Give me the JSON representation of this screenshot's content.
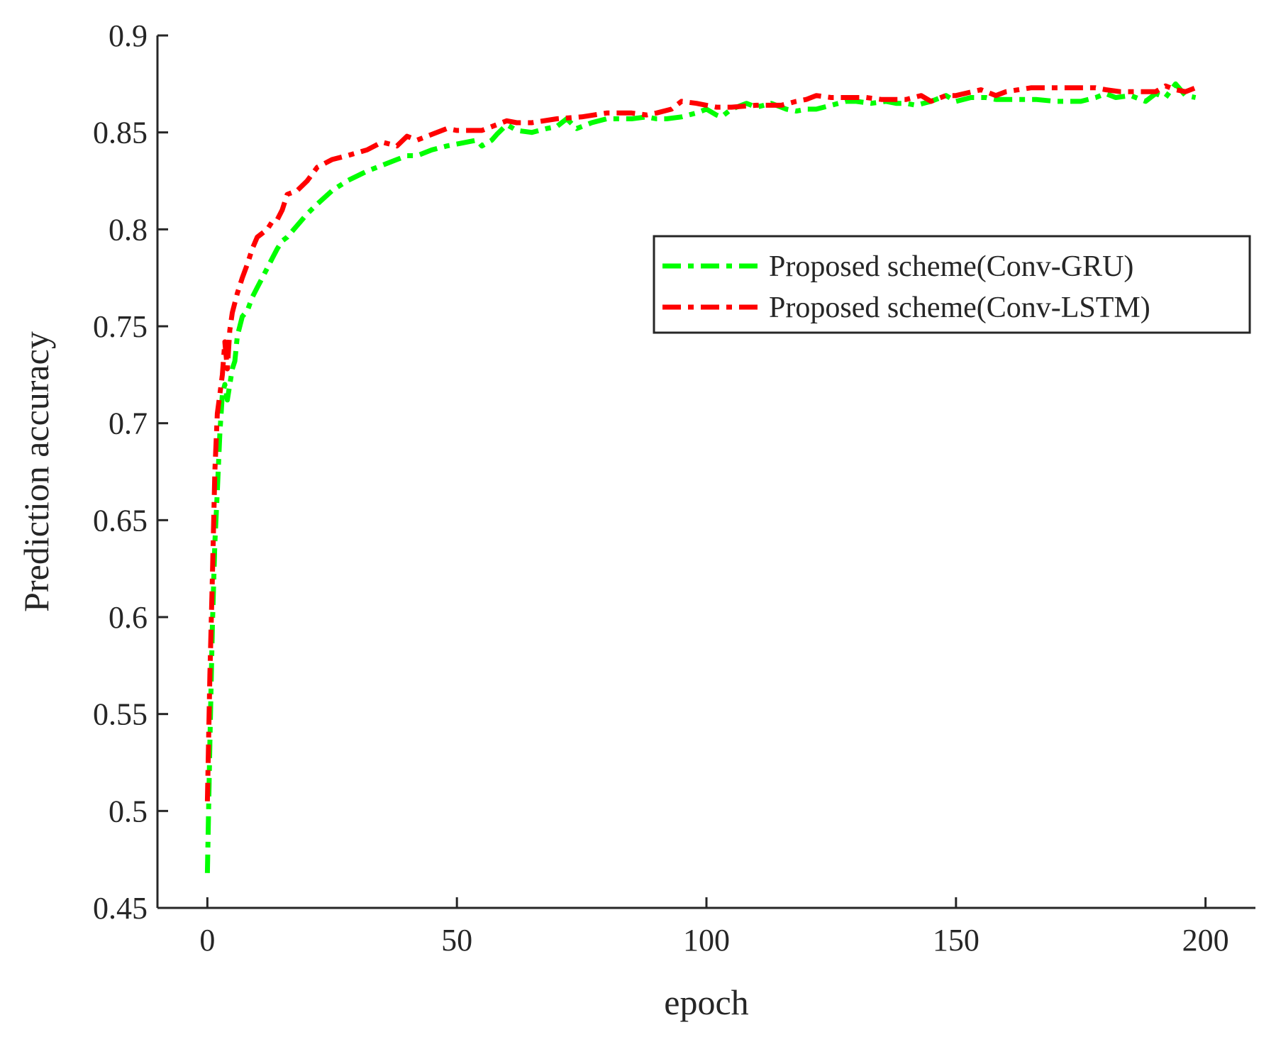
{
  "chart_data": {
    "type": "line",
    "title": "",
    "xlabel": "epoch",
    "ylabel": "Prediction accuracy",
    "xlim": [
      -10,
      210
    ],
    "ylim": [
      0.45,
      0.9
    ],
    "xticks": [
      0,
      50,
      100,
      150,
      200
    ],
    "yticks": [
      0.45,
      0.5,
      0.55,
      0.6,
      0.65,
      0.7,
      0.75,
      0.8,
      0.85,
      0.9
    ],
    "xtick_labels": [
      "0",
      "50",
      "100",
      "150",
      "200"
    ],
    "ytick_labels": [
      "0.45",
      "0.5",
      "0.55",
      "0.6",
      "0.65",
      "0.7",
      "0.75",
      "0.8",
      "0.85",
      "0.9"
    ],
    "grid": false,
    "legend_position": "right",
    "series": [
      {
        "name": "Proposed scheme(Conv-GRU)",
        "color": "#00ff00",
        "style": "dash-dot",
        "x": [
          0,
          0.5,
          1,
          1.5,
          2,
          2.5,
          3,
          3.5,
          4,
          4.5,
          5,
          5.5,
          6,
          7,
          8,
          9,
          10,
          11,
          12,
          13,
          14,
          15,
          16,
          18,
          20,
          22,
          25,
          28,
          32,
          35,
          38,
          40,
          42,
          45,
          48,
          50,
          52,
          54,
          55,
          57,
          58,
          60,
          62,
          65,
          68,
          70,
          72,
          74,
          75,
          77,
          80,
          83,
          85,
          88,
          90,
          92,
          95,
          98,
          100,
          102,
          103,
          105,
          108,
          110,
          113,
          116,
          118,
          120,
          122,
          125,
          128,
          130,
          133,
          136,
          138,
          140,
          142,
          145,
          148,
          150,
          153,
          156,
          158,
          160,
          163,
          166,
          170,
          175,
          178,
          180,
          182,
          185,
          188,
          190,
          192,
          194,
          196,
          198
        ],
        "y": [
          0.468,
          0.535,
          0.595,
          0.638,
          0.665,
          0.695,
          0.715,
          0.72,
          0.712,
          0.72,
          0.728,
          0.732,
          0.745,
          0.755,
          0.758,
          0.765,
          0.77,
          0.775,
          0.78,
          0.785,
          0.79,
          0.794,
          0.796,
          0.802,
          0.808,
          0.813,
          0.82,
          0.825,
          0.83,
          0.833,
          0.836,
          0.838,
          0.838,
          0.841,
          0.843,
          0.844,
          0.845,
          0.846,
          0.843,
          0.846,
          0.849,
          0.854,
          0.851,
          0.85,
          0.852,
          0.853,
          0.857,
          0.852,
          0.853,
          0.855,
          0.857,
          0.857,
          0.857,
          0.858,
          0.857,
          0.857,
          0.858,
          0.86,
          0.862,
          0.859,
          0.858,
          0.862,
          0.865,
          0.863,
          0.865,
          0.862,
          0.861,
          0.862,
          0.862,
          0.864,
          0.866,
          0.866,
          0.865,
          0.866,
          0.865,
          0.865,
          0.864,
          0.866,
          0.869,
          0.866,
          0.868,
          0.868,
          0.867,
          0.867,
          0.867,
          0.867,
          0.866,
          0.866,
          0.868,
          0.87,
          0.868,
          0.869,
          0.866,
          0.87,
          0.868,
          0.875,
          0.869,
          0.868
        ]
      },
      {
        "name": "Proposed scheme(Conv-LSTM)",
        "color": "#ff0000",
        "style": "dash-dot",
        "x": [
          0,
          0.5,
          1,
          1.5,
          2,
          2.5,
          3,
          3.5,
          4,
          4.5,
          5,
          6,
          7,
          8,
          9,
          10,
          11,
          12,
          13,
          14,
          15,
          16,
          18,
          20,
          22,
          25,
          28,
          32,
          35,
          38,
          40,
          42,
          45,
          48,
          50,
          55,
          60,
          62,
          65,
          70,
          75,
          80,
          85,
          88,
          90,
          93,
          95,
          98,
          100,
          102,
          105,
          110,
          115,
          118,
          120,
          122,
          125,
          128,
          132,
          135,
          140,
          143,
          145,
          148,
          150,
          155,
          158,
          160,
          165,
          170,
          175,
          178,
          180,
          183,
          186,
          190,
          192,
          194,
          196,
          198
        ],
        "y": [
          0.505,
          0.57,
          0.62,
          0.675,
          0.705,
          0.715,
          0.725,
          0.742,
          0.728,
          0.748,
          0.757,
          0.767,
          0.775,
          0.782,
          0.79,
          0.796,
          0.798,
          0.8,
          0.804,
          0.805,
          0.81,
          0.818,
          0.82,
          0.825,
          0.832,
          0.836,
          0.838,
          0.841,
          0.845,
          0.843,
          0.848,
          0.846,
          0.849,
          0.852,
          0.851,
          0.851,
          0.856,
          0.855,
          0.855,
          0.857,
          0.858,
          0.86,
          0.86,
          0.859,
          0.86,
          0.862,
          0.866,
          0.865,
          0.864,
          0.863,
          0.863,
          0.864,
          0.864,
          0.866,
          0.867,
          0.869,
          0.868,
          0.868,
          0.868,
          0.867,
          0.867,
          0.869,
          0.866,
          0.869,
          0.869,
          0.872,
          0.869,
          0.871,
          0.873,
          0.873,
          0.873,
          0.873,
          0.872,
          0.871,
          0.871,
          0.871,
          0.874,
          0.872,
          0.871,
          0.873
        ]
      }
    ]
  }
}
